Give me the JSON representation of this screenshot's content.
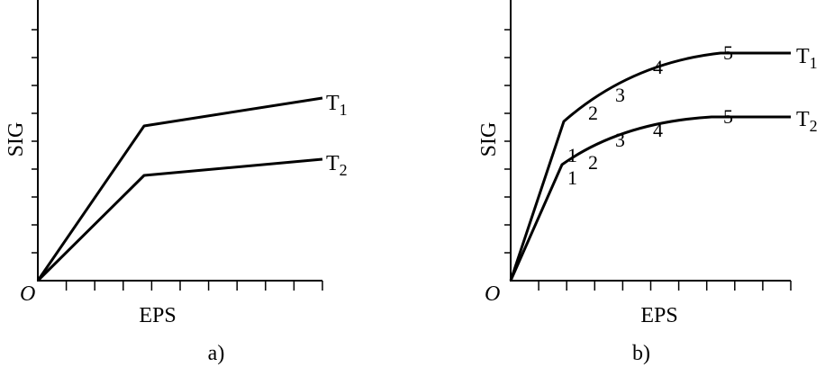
{
  "panels": [
    {
      "caption": "a)",
      "y_label": "SIG",
      "x_label": "EPS",
      "origin": "O",
      "curves": [
        {
          "letter": "T",
          "subscript": "1"
        },
        {
          "letter": "T",
          "subscript": "2"
        }
      ]
    },
    {
      "caption": "b)",
      "y_label": "SIG",
      "x_label": "EPS",
      "origin": "O",
      "curves": [
        {
          "letter": "T",
          "subscript": "1",
          "points": [
            "1",
            "2",
            "3",
            "4",
            "5"
          ]
        },
        {
          "letter": "T",
          "subscript": "2",
          "points": [
            "1",
            "2",
            "3",
            "4",
            "5"
          ]
        }
      ]
    }
  ]
}
